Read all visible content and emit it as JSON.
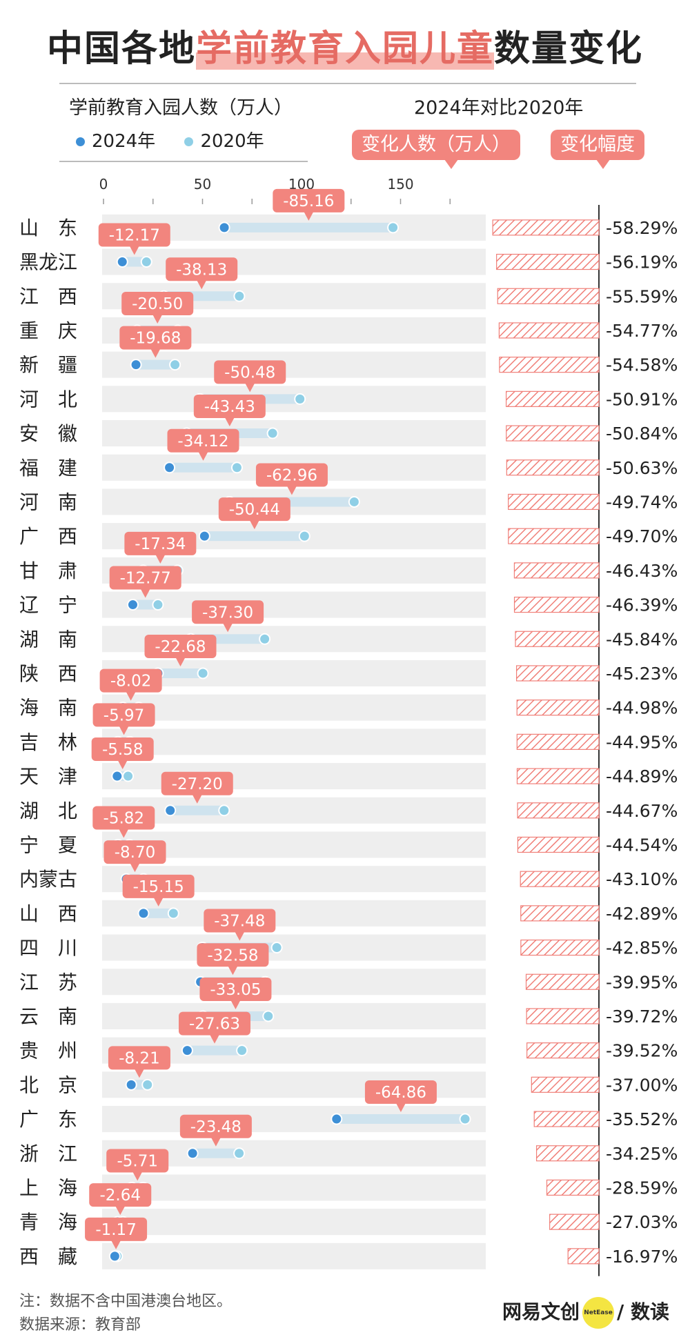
{
  "title": {
    "pre": "中国各地",
    "highlight": "学前教育入园儿童",
    "post": "数量变化"
  },
  "subtitle_left": "学前教育入园人数（万人）",
  "subtitle_right": "2024年对比2020年",
  "legend": [
    {
      "label": "2024年",
      "color": "#3d8fd6"
    },
    {
      "label": "2020年",
      "color": "#8fcfe6"
    }
  ],
  "badge_change": "变化人数（万人）",
  "badge_pct": "变化幅度",
  "note": "注：数据不含中国港澳台地区。",
  "source": "数据来源：教育部",
  "brand": {
    "left": "网易文创",
    "logo": "NetEase",
    "right": "/ 数读"
  },
  "chart_data": {
    "type": "dumbbell",
    "x_ticks": [
      0,
      50,
      100,
      150
    ],
    "xlim": [
      0,
      185
    ],
    "series": [
      {
        "name": "2024年",
        "color": "#3d8fd6"
      },
      {
        "name": "2020年",
        "color": "#8fcfe6"
      }
    ],
    "rows": [
      {
        "region": "山　东",
        "v2024": 61.0,
        "v2020": 146.2,
        "change": "-85.16",
        "pct": "-58.29%",
        "pct_value": -58.29
      },
      {
        "region": "黑龙江",
        "v2024": 9.5,
        "v2020": 21.7,
        "change": "-12.17",
        "pct": "-56.19%",
        "pct_value": -56.19
      },
      {
        "region": "江　西",
        "v2024": 30.5,
        "v2020": 68.6,
        "change": "-38.13",
        "pct": "-55.59%",
        "pct_value": -55.59
      },
      {
        "region": "重　庆",
        "v2024": 17.0,
        "v2020": 37.5,
        "change": "-20.50",
        "pct": "-54.77%",
        "pct_value": -54.77
      },
      {
        "region": "新　疆",
        "v2024": 16.4,
        "v2020": 36.1,
        "change": "-19.68",
        "pct": "-54.58%",
        "pct_value": -54.58
      },
      {
        "region": "河　北",
        "v2024": 48.7,
        "v2020": 99.2,
        "change": "-50.48",
        "pct": "-50.91%",
        "pct_value": -50.91
      },
      {
        "region": "安　徽",
        "v2024": 42.0,
        "v2020": 85.4,
        "change": "-43.43",
        "pct": "-50.84%",
        "pct_value": -50.84
      },
      {
        "region": "福　建",
        "v2024": 33.3,
        "v2020": 67.4,
        "change": "-34.12",
        "pct": "-50.63%",
        "pct_value": -50.63
      },
      {
        "region": "河　南",
        "v2024": 63.6,
        "v2020": 126.6,
        "change": "-62.96",
        "pct": "-49.74%",
        "pct_value": -49.74
      },
      {
        "region": "广　西",
        "v2024": 51.0,
        "v2020": 101.5,
        "change": "-50.44",
        "pct": "-49.70%",
        "pct_value": -49.7
      },
      {
        "region": "甘　肃",
        "v2024": 20.0,
        "v2020": 37.4,
        "change": "-17.34",
        "pct": "-46.43%",
        "pct_value": -46.43
      },
      {
        "region": "辽　宁",
        "v2024": 14.8,
        "v2020": 27.5,
        "change": "-12.77",
        "pct": "-46.39%",
        "pct_value": -46.39
      },
      {
        "region": "湖　南",
        "v2024": 44.1,
        "v2020": 81.4,
        "change": "-37.30",
        "pct": "-45.84%",
        "pct_value": -45.84
      },
      {
        "region": "陕　西",
        "v2024": 27.5,
        "v2020": 50.2,
        "change": "-22.68",
        "pct": "-45.23%",
        "pct_value": -45.23
      },
      {
        "region": "海　南",
        "v2024": 9.8,
        "v2020": 17.8,
        "change": "-8.02",
        "pct": "-44.98%",
        "pct_value": -44.98
      },
      {
        "region": "吉　林",
        "v2024": 7.3,
        "v2020": 13.3,
        "change": "-5.97",
        "pct": "-44.95%",
        "pct_value": -44.95
      },
      {
        "region": "天　津",
        "v2024": 6.9,
        "v2020": 12.4,
        "change": "-5.58",
        "pct": "-44.89%",
        "pct_value": -44.89
      },
      {
        "region": "湖　北",
        "v2024": 33.7,
        "v2020": 60.9,
        "change": "-27.20",
        "pct": "-44.67%",
        "pct_value": -44.67
      },
      {
        "region": "宁　夏",
        "v2024": 7.3,
        "v2020": 13.1,
        "change": "-5.82",
        "pct": "-44.54%",
        "pct_value": -44.54
      },
      {
        "region": "内蒙古",
        "v2024": 11.5,
        "v2020": 20.2,
        "change": "-8.70",
        "pct": "-43.10%",
        "pct_value": -43.1
      },
      {
        "region": "山　西",
        "v2024": 20.2,
        "v2020": 35.3,
        "change": "-15.15",
        "pct": "-42.89%",
        "pct_value": -42.89
      },
      {
        "region": "四　川",
        "v2024": 50.0,
        "v2020": 87.5,
        "change": "-37.48",
        "pct": "-42.85%",
        "pct_value": -42.85
      },
      {
        "region": "江　苏",
        "v2024": 49.0,
        "v2020": 81.6,
        "change": "-32.58",
        "pct": "-39.95%",
        "pct_value": -39.95
      },
      {
        "region": "云　南",
        "v2024": 50.2,
        "v2020": 83.2,
        "change": "-33.05",
        "pct": "-39.72%",
        "pct_value": -39.72
      },
      {
        "region": "贵　州",
        "v2024": 42.3,
        "v2020": 69.9,
        "change": "-27.63",
        "pct": "-39.52%",
        "pct_value": -39.52
      },
      {
        "region": "北　京",
        "v2024": 14.0,
        "v2020": 22.2,
        "change": "-8.21",
        "pct": "-37.00%",
        "pct_value": -37.0
      },
      {
        "region": "广　东",
        "v2024": 117.7,
        "v2020": 182.6,
        "change": "-64.86",
        "pct": "-35.52%",
        "pct_value": -35.52
      },
      {
        "region": "浙　江",
        "v2024": 45.0,
        "v2020": 68.5,
        "change": "-23.48",
        "pct": "-34.25%",
        "pct_value": -34.25
      },
      {
        "region": "上　海",
        "v2024": 14.3,
        "v2020": 20.0,
        "change": "-5.71",
        "pct": "-28.59%",
        "pct_value": -28.59
      },
      {
        "region": "青　海",
        "v2024": 7.1,
        "v2020": 9.8,
        "change": "-2.64",
        "pct": "-27.03%",
        "pct_value": -27.03
      },
      {
        "region": "西　藏",
        "v2024": 5.7,
        "v2020": 6.9,
        "change": "-1.17",
        "pct": "-16.97%",
        "pct_value": -16.97
      }
    ]
  }
}
